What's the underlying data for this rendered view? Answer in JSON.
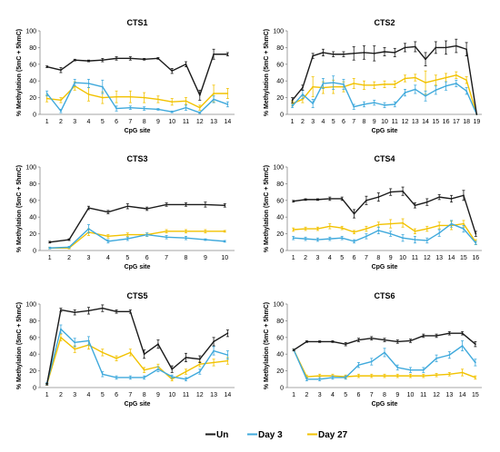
{
  "colors": {
    "Un": "#1a1a1a",
    "Day 3": "#3fa9dc",
    "Day 27": "#f2c200"
  },
  "legend": {
    "placement": "bottom-center",
    "entries": [
      "Un",
      "Day 3",
      "Day 27"
    ]
  },
  "chart_data": [
    {
      "type": "line",
      "title": "CTS1",
      "xlabel": "CpG site",
      "ylabel": "% Methylation (5mC + 5hmC)",
      "ylim": [
        0,
        100
      ],
      "yticks": [
        0,
        20,
        40,
        60,
        80,
        100
      ],
      "x": [
        "1",
        "2",
        "3",
        "4",
        "5",
        "6",
        "7",
        "8",
        "9",
        "10",
        "11",
        "12",
        "13",
        "14"
      ],
      "series": [
        {
          "name": "Un",
          "values": [
            57,
            53,
            65,
            64,
            65,
            67,
            67,
            66,
            67,
            52,
            60,
            23,
            72,
            72
          ],
          "err": [
            1,
            3,
            1,
            1,
            2,
            2,
            2,
            1,
            1,
            3,
            3,
            6,
            6,
            2
          ]
        },
        {
          "name": "Day 3",
          "values": [
            25,
            4,
            38,
            37,
            33,
            7,
            8,
            7,
            6,
            3,
            8,
            2,
            18,
            12
          ],
          "err": [
            3,
            2,
            4,
            5,
            8,
            3,
            2,
            2,
            1,
            1,
            3,
            1,
            4,
            3
          ]
        },
        {
          "name": "Day 27",
          "values": [
            19,
            17,
            34,
            24,
            20,
            21,
            21,
            20,
            18,
            15,
            16,
            8,
            25,
            25
          ],
          "err": [
            4,
            3,
            5,
            8,
            7,
            7,
            7,
            6,
            4,
            4,
            4,
            3,
            10,
            6
          ]
        }
      ],
      "grid": false
    },
    {
      "type": "line",
      "title": "CTS2",
      "xlabel": "CpG site",
      "ylabel": "% Methylation (5mC + 5hmC)",
      "ylim": [
        0,
        100
      ],
      "yticks": [
        0,
        20,
        40,
        60,
        80,
        100
      ],
      "x": [
        "1",
        "2",
        "3",
        "4",
        "5",
        "6",
        "7",
        "8",
        "9",
        "10",
        "11",
        "12",
        "13",
        "14",
        "15",
        "16",
        "17",
        "18",
        "19"
      ],
      "series": [
        {
          "name": "Un",
          "values": [
            17,
            32,
            70,
            74,
            72,
            72,
            73,
            74,
            73,
            75,
            74,
            80,
            81,
            66,
            80,
            80,
            82,
            78,
            0
          ],
          "err": [
            3,
            3,
            3,
            4,
            3,
            3,
            8,
            8,
            9,
            5,
            5,
            5,
            6,
            8,
            7,
            8,
            8,
            8,
            0
          ]
        },
        {
          "name": "Day 3",
          "values": [
            10,
            24,
            13,
            37,
            38,
            36,
            9,
            12,
            14,
            11,
            12,
            26,
            30,
            22,
            29,
            34,
            37,
            28,
            0
          ],
          "err": [
            2,
            5,
            5,
            6,
            8,
            6,
            3,
            3,
            3,
            3,
            3,
            4,
            5,
            6,
            5,
            5,
            4,
            4,
            0
          ]
        },
        {
          "name": "Day 27",
          "values": [
            13,
            18,
            33,
            32,
            33,
            33,
            37,
            35,
            35,
            36,
            36,
            43,
            44,
            38,
            41,
            44,
            47,
            41,
            0
          ],
          "err": [
            3,
            4,
            12,
            7,
            8,
            6,
            6,
            5,
            4,
            4,
            4,
            4,
            4,
            14,
            6,
            5,
            4,
            4,
            0
          ]
        }
      ],
      "grid": false
    },
    {
      "type": "line",
      "title": "CTS3",
      "xlabel": "CpG site",
      "ylabel": "% Methylation (5mC + 5hmC)",
      "ylim": [
        0,
        100
      ],
      "yticks": [
        0,
        20,
        40,
        60,
        80,
        100
      ],
      "x": [
        "1",
        "2",
        "3",
        "4",
        "5",
        "6",
        "7",
        "8",
        "9",
        "10"
      ],
      "series": [
        {
          "name": "Un",
          "values": [
            10,
            13,
            51,
            46,
            53,
            50,
            55,
            55,
            55,
            54
          ],
          "err": [
            1,
            1,
            2,
            2,
            3,
            2,
            2,
            2,
            3,
            2
          ]
        },
        {
          "name": "Day 3",
          "values": [
            3,
            4,
            26,
            11,
            14,
            19,
            16,
            15,
            13,
            11
          ],
          "err": [
            1,
            1,
            5,
            2,
            2,
            2,
            2,
            2,
            1,
            1
          ]
        },
        {
          "name": "Day 27",
          "values": [
            3,
            3,
            22,
            17,
            19,
            19,
            23,
            23,
            23,
            23
          ],
          "err": [
            1,
            1,
            4,
            2,
            2,
            2,
            2,
            2,
            2,
            1
          ]
        }
      ],
      "grid": false
    },
    {
      "type": "line",
      "title": "CTS4",
      "xlabel": "CpG site",
      "ylabel": "% Methylation (5mC + 5hmC)",
      "ylim": [
        0,
        100
      ],
      "yticks": [
        0,
        20,
        40,
        60,
        80,
        100
      ],
      "x": [
        "1",
        "2",
        "3",
        "4",
        "5",
        "6",
        "7",
        "8",
        "9",
        "10",
        "11",
        "12",
        "13",
        "14",
        "15",
        "16"
      ],
      "series": [
        {
          "name": "Un",
          "values": [
            59,
            61,
            61,
            62,
            62,
            44,
            60,
            64,
            70,
            71,
            54,
            58,
            64,
            62,
            66,
            20
          ],
          "err": [
            1,
            1,
            1,
            2,
            2,
            5,
            5,
            5,
            4,
            5,
            3,
            4,
            3,
            4,
            6,
            3
          ]
        },
        {
          "name": "Day 3",
          "values": [
            15,
            14,
            13,
            14,
            15,
            11,
            17,
            24,
            20,
            15,
            13,
            12,
            21,
            32,
            26,
            9
          ],
          "err": [
            2,
            2,
            2,
            2,
            2,
            2,
            3,
            4,
            3,
            4,
            4,
            3,
            4,
            4,
            4,
            2
          ]
        },
        {
          "name": "Day 27",
          "values": [
            25,
            26,
            26,
            29,
            27,
            22,
            26,
            31,
            32,
            33,
            23,
            26,
            30,
            30,
            32,
            10
          ],
          "err": [
            2,
            2,
            2,
            3,
            2,
            2,
            3,
            3,
            5,
            5,
            3,
            3,
            4,
            5,
            4,
            3
          ]
        }
      ],
      "grid": false
    },
    {
      "type": "line",
      "title": "CTS5",
      "xlabel": "CpG site",
      "ylabel": "% Methylation (5mC + 5hmC)",
      "ylim": [
        0,
        100
      ],
      "yticks": [
        0,
        20,
        40,
        60,
        80,
        100
      ],
      "x": [
        "1",
        "2",
        "3",
        "4",
        "5",
        "6",
        "7",
        "8",
        "9",
        "10",
        "11",
        "12",
        "13",
        "14"
      ],
      "series": [
        {
          "name": "Un",
          "values": [
            4,
            93,
            90,
            92,
            95,
            91,
            91,
            40,
            52,
            22,
            36,
            34,
            55,
            65
          ],
          "err": [
            1,
            2,
            3,
            4,
            4,
            2,
            2,
            5,
            5,
            4,
            5,
            4,
            5,
            4
          ]
        },
        {
          "name": "Day 3",
          "values": [
            5,
            70,
            54,
            56,
            16,
            12,
            12,
            12,
            22,
            13,
            10,
            19,
            44,
            39
          ],
          "err": [
            1,
            5,
            5,
            5,
            3,
            2,
            2,
            2,
            3,
            2,
            2,
            3,
            5,
            5
          ]
        },
        {
          "name": "Day 27",
          "values": [
            4,
            60,
            46,
            51,
            42,
            35,
            42,
            21,
            25,
            10,
            19,
            28,
            30,
            32
          ],
          "err": [
            1,
            4,
            4,
            5,
            4,
            3,
            4,
            3,
            3,
            2,
            3,
            3,
            4,
            4
          ]
        }
      ],
      "grid": false
    },
    {
      "type": "line",
      "title": "CTS6",
      "xlabel": "CpG site",
      "ylabel": "% Methylation (5mC + 5hmC)",
      "ylim": [
        0,
        100
      ],
      "yticks": [
        0,
        20,
        40,
        60,
        80,
        100
      ],
      "x": [
        "1",
        "2",
        "3",
        "4",
        "5",
        "6",
        "7",
        "8",
        "9",
        "10",
        "11",
        "12",
        "13",
        "14",
        "15"
      ],
      "series": [
        {
          "name": "Un",
          "values": [
            45,
            55,
            55,
            55,
            52,
            57,
            59,
            57,
            55,
            56,
            62,
            62,
            65,
            65,
            52
          ],
          "err": [
            1,
            1,
            1,
            1,
            2,
            2,
            2,
            2,
            2,
            2,
            2,
            2,
            2,
            2,
            3
          ]
        },
        {
          "name": "Day 3",
          "values": [
            45,
            10,
            10,
            12,
            12,
            27,
            31,
            42,
            24,
            21,
            21,
            35,
            39,
            50,
            30
          ],
          "err": [
            1,
            2,
            2,
            2,
            2,
            3,
            4,
            5,
            3,
            3,
            3,
            4,
            4,
            6,
            4
          ]
        },
        {
          "name": "Day 27",
          "values": [
            45,
            13,
            14,
            14,
            13,
            14,
            14,
            14,
            14,
            14,
            14,
            15,
            16,
            18,
            12
          ],
          "err": [
            1,
            2,
            2,
            2,
            2,
            2,
            2,
            2,
            2,
            2,
            2,
            2,
            2,
            4,
            2
          ]
        }
      ],
      "grid": false
    }
  ]
}
